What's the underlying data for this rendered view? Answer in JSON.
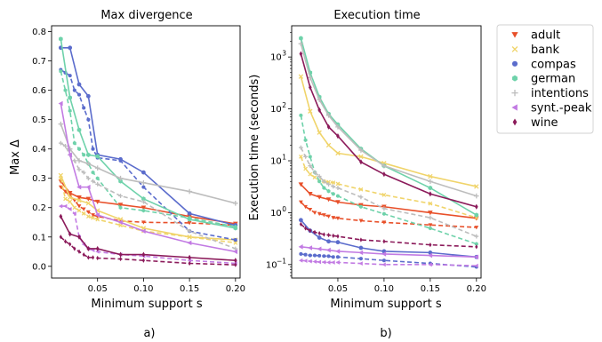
{
  "figure": {
    "panel_a_caption": "a)",
    "panel_b_caption": "b)"
  },
  "legend": [
    {
      "name": "adult",
      "color": "#e8502a",
      "marker": "triangle-down"
    },
    {
      "name": "bank",
      "color": "#f0d46a",
      "marker": "x"
    },
    {
      "name": "compas",
      "color": "#5b6ccc",
      "marker": "circle"
    },
    {
      "name": "german",
      "color": "#6ed2aa",
      "marker": "hexagon"
    },
    {
      "name": "intentions",
      "color": "#bdbdbd",
      "marker": "plus"
    },
    {
      "name": "synt.-peak",
      "color": "#c27be3",
      "marker": "triangle-left"
    },
    {
      "name": "wine",
      "color": "#8b1a5a",
      "marker": "diamond"
    }
  ],
  "chart_data": [
    {
      "type": "line",
      "title": "Max divergence",
      "xlabel": "Minimum support s",
      "ylabel": "Max Δ",
      "xlim": [
        0,
        0.205
      ],
      "ylim": [
        -0.04,
        0.82
      ],
      "xticks": [
        "0.05",
        "0.10",
        "0.15",
        "0.20"
      ],
      "xtick_values": [
        0.05,
        0.1,
        0.15,
        0.2
      ],
      "yticks": [
        "0.0",
        "0.1",
        "0.2",
        "0.3",
        "0.4",
        "0.5",
        "0.6",
        "0.7",
        "0.8"
      ],
      "ytick_values": [
        0,
        0.1,
        0.2,
        0.3,
        0.4,
        0.5,
        0.6,
        0.7,
        0.8
      ],
      "x_solid": [
        0.01,
        0.02,
        0.03,
        0.04,
        0.05,
        0.075,
        0.1,
        0.15,
        0.2
      ],
      "x_dashed": [
        0.01,
        0.015,
        0.02,
        0.025,
        0.03,
        0.035,
        0.04,
        0.045,
        0.05,
        0.075,
        0.1,
        0.15,
        0.2
      ],
      "series": [
        {
          "name": "adult",
          "color": "#e8502a",
          "marker": "triangle-down",
          "solid": [
            0.29,
            0.25,
            0.235,
            0.23,
            0.22,
            0.21,
            0.2,
            0.17,
            0.145
          ],
          "dashed": [
            0.27,
            0.255,
            0.24,
            0.225,
            0.205,
            0.195,
            0.185,
            0.175,
            0.17,
            0.155,
            0.15,
            0.148,
            0.14
          ]
        },
        {
          "name": "bank",
          "color": "#f0d46a",
          "marker": "x",
          "solid": [
            0.31,
            0.235,
            0.225,
            0.215,
            0.19,
            0.16,
            0.13,
            0.1,
            0.09
          ],
          "dashed": [
            0.3,
            0.23,
            0.22,
            0.2,
            0.19,
            0.18,
            0.17,
            0.165,
            0.16,
            0.14,
            0.12,
            0.1,
            0.08
          ]
        },
        {
          "name": "compas",
          "color": "#5b6ccc",
          "marker": "circle",
          "solid": [
            0.745,
            0.745,
            0.62,
            0.58,
            0.38,
            0.365,
            0.32,
            0.18,
            0.14
          ],
          "dashed": [
            0.67,
            0.66,
            0.65,
            0.6,
            0.585,
            0.54,
            0.5,
            0.4,
            0.37,
            0.36,
            0.27,
            0.12,
            0.09
          ]
        },
        {
          "name": "german",
          "color": "#6ed2aa",
          "marker": "hexagon",
          "solid": [
            0.775,
            0.575,
            0.465,
            0.38,
            0.375,
            0.29,
            0.23,
            0.16,
            0.13
          ],
          "dashed": [
            0.665,
            0.6,
            0.53,
            0.42,
            0.4,
            0.38,
            0.35,
            0.32,
            0.3,
            0.2,
            0.19,
            0.165,
            0.135
          ]
        },
        {
          "name": "intentions",
          "color": "#bdbdbd",
          "marker": "plus",
          "solid": [
            0.485,
            0.4,
            0.36,
            0.35,
            0.335,
            0.3,
            0.285,
            0.255,
            0.215
          ],
          "dashed": [
            0.42,
            0.41,
            0.38,
            0.36,
            0.33,
            0.32,
            0.3,
            0.29,
            0.28,
            0.24,
            0.22,
            0.12,
            0.06
          ]
        },
        {
          "name": "synt.-peak",
          "color": "#c27be3",
          "marker": "triangle-left",
          "solid": [
            0.555,
            0.38,
            0.27,
            0.27,
            0.175,
            0.15,
            0.12,
            0.08,
            0.05
          ],
          "dashed": [
            0.205,
            0.205,
            0.195,
            0.18,
            0.1,
            0.075,
            0.06,
            0.055,
            0.05,
            0.04,
            0.035,
            0.02,
            0.01
          ]
        },
        {
          "name": "wine",
          "color": "#8b1a5a",
          "marker": "diamond",
          "solid": [
            0.17,
            0.11,
            0.1,
            0.06,
            0.06,
            0.04,
            0.04,
            0.03,
            0.02
          ],
          "dashed": [
            0.1,
            0.085,
            0.075,
            0.06,
            0.05,
            0.04,
            0.03,
            0.03,
            0.028,
            0.025,
            0.02,
            0.01,
            0.005
          ]
        }
      ]
    },
    {
      "type": "line",
      "title": "Execution time",
      "xlabel": "Minimum support s",
      "ylabel": "Execution time (seconds)",
      "yscale": "log",
      "xlim": [
        0,
        0.205
      ],
      "ylim": [
        0.055,
        4000
      ],
      "xticks": [
        "0.05",
        "0.10",
        "0.15",
        "0.20"
      ],
      "xtick_values": [
        0.05,
        0.1,
        0.15,
        0.2
      ],
      "yticks": [
        "10",
        "10",
        "10",
        "10",
        "10"
      ],
      "ytick_exponents": [
        "−1",
        "0",
        "1",
        "2",
        "3"
      ],
      "ytick_values": [
        0.1,
        1,
        10,
        100,
        1000
      ],
      "x_solid": [
        0.01,
        0.02,
        0.03,
        0.04,
        0.05,
        0.075,
        0.1,
        0.15,
        0.2
      ],
      "x_dashed": [
        0.01,
        0.015,
        0.02,
        0.025,
        0.03,
        0.035,
        0.04,
        0.045,
        0.05,
        0.075,
        0.1,
        0.15,
        0.2
      ],
      "series": [
        {
          "name": "adult",
          "color": "#e8502a",
          "marker": "triangle-down",
          "solid": [
            3.5,
            2.3,
            2.0,
            1.8,
            1.6,
            1.4,
            1.3,
            1.0,
            0.78
          ],
          "dashed": [
            1.6,
            1.3,
            1.15,
            1.0,
            0.95,
            0.9,
            0.85,
            0.8,
            0.78,
            0.7,
            0.65,
            0.58,
            0.52
          ]
        },
        {
          "name": "bank",
          "color": "#f0d46a",
          "marker": "x",
          "solid": [
            420,
            90,
            35,
            20,
            14,
            12,
            9,
            5,
            3.2
          ],
          "dashed": [
            12,
            7,
            5.5,
            4.8,
            4.2,
            4.0,
            3.9,
            3.8,
            3.6,
            2.8,
            2.2,
            1.5,
            0.8
          ]
        },
        {
          "name": "compas",
          "color": "#5b6ccc",
          "marker": "circle",
          "solid": [
            0.72,
            0.45,
            0.33,
            0.28,
            0.27,
            0.21,
            0.18,
            0.17,
            0.14
          ],
          "dashed": [
            0.16,
            0.155,
            0.15,
            0.15,
            0.148,
            0.146,
            0.145,
            0.14,
            0.14,
            0.13,
            0.12,
            0.105,
            0.09
          ]
        },
        {
          "name": "german",
          "color": "#6ed2aa",
          "marker": "hexagon",
          "solid": [
            2300,
            500,
            170,
            80,
            50,
            17,
            8,
            3,
            0.9
          ],
          "dashed": [
            75,
            25,
            12,
            6,
            4,
            3,
            2.6,
            2.3,
            2.1,
            1.3,
            0.95,
            0.5,
            0.25
          ]
        },
        {
          "name": "intentions",
          "color": "#bdbdbd",
          "marker": "plus",
          "solid": [
            1800,
            400,
            150,
            75,
            45,
            16,
            8,
            4,
            2.1
          ],
          "dashed": [
            18,
            12,
            8,
            6,
            5,
            4,
            3.5,
            3.2,
            3.0,
            2.0,
            1.2,
            0.8,
            0.35
          ]
        },
        {
          "name": "synt.-peak",
          "color": "#c27be3",
          "marker": "triangle-left",
          "solid": [
            0.22,
            0.21,
            0.2,
            0.19,
            0.18,
            0.17,
            0.16,
            0.15,
            0.14
          ],
          "dashed": [
            0.12,
            0.118,
            0.116,
            0.114,
            0.112,
            0.111,
            0.11,
            0.11,
            0.11,
            0.105,
            0.1,
            0.1,
            0.095
          ]
        },
        {
          "name": "wine",
          "color": "#8b1a5a",
          "marker": "diamond",
          "solid": [
            1150,
            260,
            95,
            45,
            30,
            9.5,
            5.5,
            2.3,
            1.3
          ],
          "dashed": [
            0.6,
            0.5,
            0.45,
            0.42,
            0.4,
            0.38,
            0.37,
            0.36,
            0.35,
            0.3,
            0.28,
            0.24,
            0.22
          ]
        }
      ]
    }
  ]
}
